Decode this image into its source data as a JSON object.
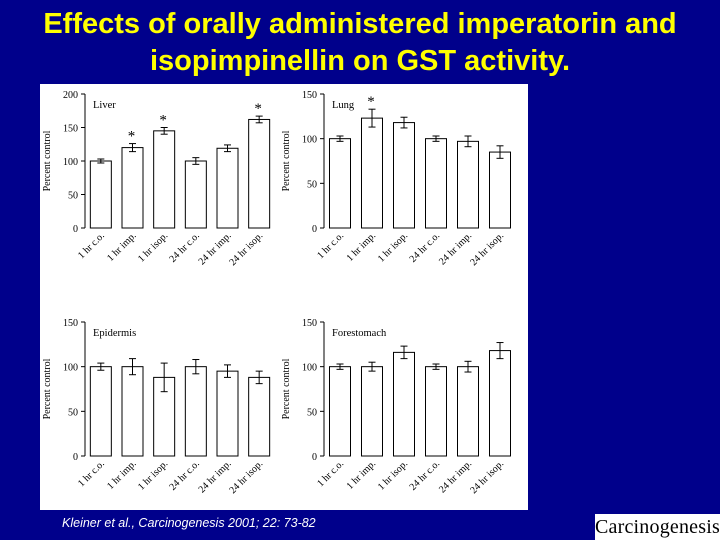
{
  "title": "Effects of orally administered imperatorin and isopimpinellin on GST activity.",
  "citation": "Kleiner et al., Carcinogenesis 2001; 22: 73-82",
  "journal_logo": "Carcinogenesis",
  "colors": {
    "background": "#00008b",
    "title": "#ffff00",
    "citation": "#ffffff",
    "figure": "#ffffff"
  },
  "chart_data": [
    {
      "type": "bar",
      "panel_label": "Liver",
      "ylabel": "Percent control",
      "ylim": [
        0,
        200
      ],
      "yticks": [
        0,
        50,
        100,
        150,
        200
      ],
      "categories": [
        "1 hr c.o.",
        "1 hr imp.",
        "1 hr isop.",
        "24 hr c.o.",
        "24 hr imp.",
        "24 hr isop."
      ],
      "values": [
        100,
        120,
        145,
        100,
        119,
        162
      ],
      "errors": [
        3,
        6,
        5,
        5,
        5,
        5
      ],
      "significance": [
        "",
        "*",
        "*",
        "",
        "",
        "*"
      ]
    },
    {
      "type": "bar",
      "panel_label": "Lung",
      "ylabel": "Percent control",
      "ylim": [
        0,
        150
      ],
      "yticks": [
        0,
        50,
        100,
        150
      ],
      "categories": [
        "1 hr c.o.",
        "1 hr imp.",
        "1 hr isop.",
        "24 hr c.o.",
        "24 hr imp.",
        "24 hr isop."
      ],
      "values": [
        100,
        123,
        118,
        100,
        97,
        85
      ],
      "errors": [
        3,
        10,
        6,
        3,
        6,
        7
      ],
      "significance": [
        "",
        "*",
        "",
        "",
        "",
        ""
      ]
    },
    {
      "type": "bar",
      "panel_label": "Epidermis",
      "ylabel": "Percent control",
      "ylim": [
        0,
        150
      ],
      "yticks": [
        0,
        50,
        100,
        150
      ],
      "categories": [
        "1 hr c.o.",
        "1 hr imp.",
        "1 hr isop.",
        "24 hr c.o.",
        "24 hr imp.",
        "24 hr isop."
      ],
      "values": [
        100,
        100,
        88,
        100,
        95,
        88
      ],
      "errors": [
        4,
        9,
        16,
        8,
        7,
        7
      ],
      "significance": [
        "",
        "",
        "",
        "",
        "",
        ""
      ]
    },
    {
      "type": "bar",
      "panel_label": "Forestomach",
      "ylabel": "Percent control",
      "ylim": [
        0,
        150
      ],
      "yticks": [
        0,
        50,
        100,
        150
      ],
      "categories": [
        "1 hr c.o.",
        "1 hr imp.",
        "1 hr isop.",
        "24 hr c.o.",
        "24 hr imp.",
        "24 hr isop."
      ],
      "values": [
        100,
        100,
        116,
        100,
        100,
        118
      ],
      "errors": [
        3,
        5,
        7,
        3,
        6,
        9
      ],
      "significance": [
        "",
        "",
        "",
        "",
        "",
        ""
      ]
    }
  ]
}
